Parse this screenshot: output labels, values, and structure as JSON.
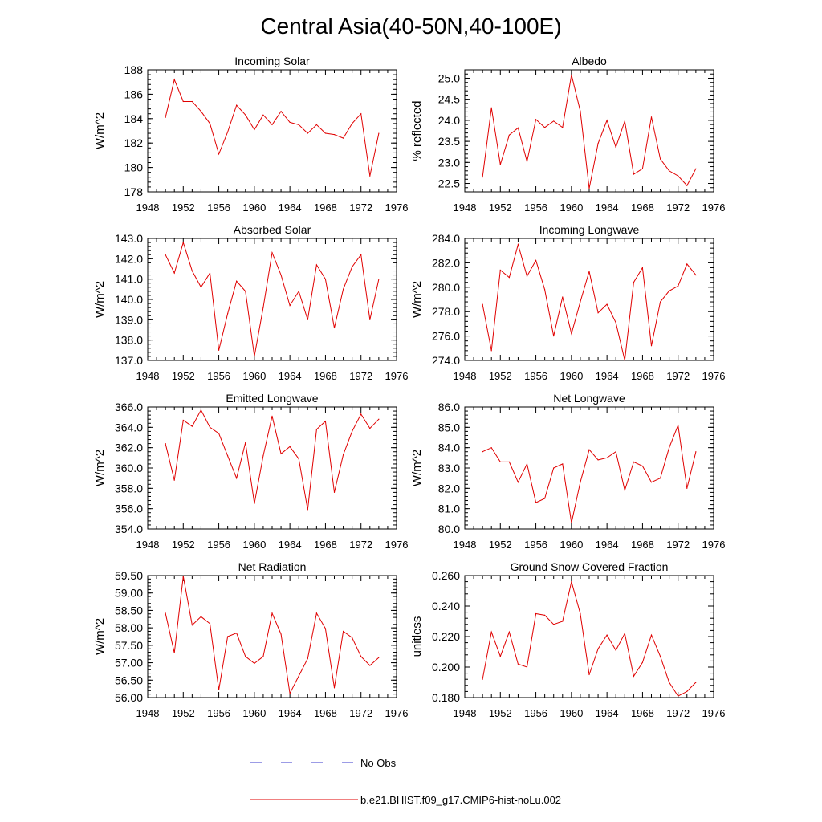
{
  "figure_title": "Central Asia(40-50N,40-100E)",
  "legend": {
    "obs_label": "No Obs",
    "model_label": "b.e21.BHIST.f09_g17.CMIP6-hist-noLu.002",
    "obs_color": "#3a3acc",
    "model_color": "#e00000"
  },
  "chart_data": [
    {
      "type": "line",
      "title": "Incoming Solar",
      "ylabel": "W/m^2",
      "xlabel": "",
      "xlim": [
        1948,
        1976
      ],
      "ylim": [
        178,
        188
      ],
      "xticks": [
        1948,
        1952,
        1956,
        1960,
        1964,
        1968,
        1972,
        1976
      ],
      "yticks": [
        "178",
        "180",
        "182",
        "184",
        "186",
        "188"
      ],
      "x": [
        1950,
        1951,
        1952,
        1953,
        1954,
        1955,
        1956,
        1957,
        1958,
        1959,
        1960,
        1961,
        1962,
        1963,
        1964,
        1965,
        1966,
        1967,
        1968,
        1969,
        1970,
        1971,
        1972,
        1973,
        1974
      ],
      "values": [
        184.1,
        187.2,
        185.4,
        185.4,
        184.6,
        183.6,
        181.1,
        182.9,
        185.1,
        184.3,
        183.1,
        184.3,
        183.5,
        184.6,
        183.7,
        183.5,
        182.8,
        183.5,
        182.8,
        182.7,
        182.4,
        183.6,
        184.4,
        179.3,
        182.8
      ]
    },
    {
      "type": "line",
      "title": "Albedo",
      "ylabel": "% reflected",
      "xlabel": "",
      "xlim": [
        1948,
        1976
      ],
      "ylim": [
        22.3,
        25.2
      ],
      "xticks": [
        1948,
        1952,
        1956,
        1960,
        1964,
        1968,
        1972,
        1976
      ],
      "yticks": [
        "22.5",
        "23.0",
        "23.5",
        "24.0",
        "24.5",
        "25.0"
      ],
      "x": [
        1950,
        1951,
        1952,
        1953,
        1954,
        1955,
        1956,
        1957,
        1958,
        1959,
        1960,
        1961,
        1962,
        1963,
        1964,
        1965,
        1966,
        1967,
        1968,
        1969,
        1970,
        1971,
        1972,
        1973,
        1974
      ],
      "values": [
        22.65,
        24.3,
        22.95,
        23.65,
        23.82,
        23.02,
        24.02,
        23.83,
        23.98,
        23.83,
        25.08,
        24.22,
        22.38,
        23.45,
        24.0,
        23.36,
        23.98,
        22.72,
        22.85,
        24.08,
        23.08,
        22.8,
        22.68,
        22.45,
        22.85
      ]
    },
    {
      "type": "line",
      "title": "Absorbed Solar",
      "ylabel": "W/m^2",
      "xlabel": "",
      "xlim": [
        1948,
        1976
      ],
      "ylim": [
        137,
        143
      ],
      "xticks": [
        1948,
        1952,
        1956,
        1960,
        1964,
        1968,
        1972,
        1976
      ],
      "yticks": [
        "137.0",
        "138.0",
        "139.0",
        "140.0",
        "141.0",
        "142.0",
        "143.0"
      ],
      "x": [
        1950,
        1951,
        1952,
        1953,
        1954,
        1955,
        1956,
        1957,
        1958,
        1959,
        1960,
        1961,
        1962,
        1963,
        1964,
        1965,
        1966,
        1967,
        1968,
        1969,
        1970,
        1971,
        1972,
        1973,
        1974
      ],
      "values": [
        142.2,
        141.3,
        142.8,
        141.4,
        140.6,
        141.3,
        137.5,
        139.3,
        140.9,
        140.4,
        137.2,
        139.6,
        142.3,
        141.2,
        139.7,
        140.4,
        139.0,
        141.7,
        141.0,
        138.6,
        140.5,
        141.6,
        142.2,
        139.0,
        141.0
      ]
    },
    {
      "type": "line",
      "title": "Incoming Longwave",
      "ylabel": "W/m^2",
      "xlabel": "",
      "xlim": [
        1948,
        1976
      ],
      "ylim": [
        274,
        284
      ],
      "xticks": [
        1948,
        1952,
        1956,
        1960,
        1964,
        1968,
        1972,
        1976
      ],
      "yticks": [
        "274.0",
        "276.0",
        "278.0",
        "280.0",
        "282.0",
        "284.0"
      ],
      "x": [
        1950,
        1951,
        1952,
        1953,
        1954,
        1955,
        1956,
        1957,
        1958,
        1959,
        1960,
        1961,
        1962,
        1963,
        1964,
        1965,
        1966,
        1967,
        1968,
        1969,
        1970,
        1971,
        1972,
        1973,
        1974
      ],
      "values": [
        278.6,
        274.8,
        281.4,
        280.8,
        283.5,
        280.9,
        282.2,
        279.8,
        276.0,
        279.2,
        276.2,
        278.8,
        281.3,
        277.9,
        278.6,
        277.1,
        274.0,
        280.4,
        281.6,
        275.2,
        278.8,
        279.7,
        280.1,
        281.9,
        281.0
      ]
    },
    {
      "type": "line",
      "title": "Emitted Longwave",
      "ylabel": "W/m^2",
      "xlabel": "",
      "xlim": [
        1948,
        1976
      ],
      "ylim": [
        354,
        366
      ],
      "xticks": [
        1948,
        1952,
        1956,
        1960,
        1964,
        1968,
        1972,
        1976
      ],
      "yticks": [
        "354.0",
        "356.0",
        "358.0",
        "360.0",
        "362.0",
        "364.0",
        "366.0"
      ],
      "x": [
        1950,
        1951,
        1952,
        1953,
        1954,
        1955,
        1956,
        1957,
        1958,
        1959,
        1960,
        1961,
        1962,
        1963,
        1964,
        1965,
        1966,
        1967,
        1968,
        1969,
        1970,
        1971,
        1972,
        1973,
        1974
      ],
      "values": [
        362.4,
        358.8,
        364.7,
        364.1,
        365.7,
        364.0,
        363.4,
        361.2,
        359.0,
        362.5,
        356.5,
        361.2,
        365.1,
        361.4,
        362.1,
        360.9,
        355.9,
        363.8,
        364.6,
        357.6,
        361.3,
        363.6,
        365.3,
        363.9,
        364.8
      ]
    },
    {
      "type": "line",
      "title": "Net Longwave",
      "ylabel": "W/m^2",
      "xlabel": "",
      "xlim": [
        1948,
        1976
      ],
      "ylim": [
        80,
        86
      ],
      "xticks": [
        1948,
        1952,
        1956,
        1960,
        1964,
        1968,
        1972,
        1976
      ],
      "yticks": [
        "80.0",
        "81.0",
        "82.0",
        "83.0",
        "84.0",
        "85.0",
        "86.0"
      ],
      "x": [
        1950,
        1951,
        1952,
        1953,
        1954,
        1955,
        1956,
        1957,
        1958,
        1959,
        1960,
        1961,
        1962,
        1963,
        1964,
        1965,
        1966,
        1967,
        1968,
        1969,
        1970,
        1971,
        1972,
        1973,
        1974
      ],
      "values": [
        83.8,
        84.0,
        83.3,
        83.3,
        82.3,
        83.2,
        81.3,
        81.5,
        83.0,
        83.2,
        80.3,
        82.3,
        83.9,
        83.4,
        83.5,
        83.8,
        81.9,
        83.3,
        83.1,
        82.3,
        82.5,
        84.0,
        85.1,
        82.0,
        83.8
      ]
    },
    {
      "type": "line",
      "title": "Net Radiation",
      "ylabel": "W/m^2",
      "xlabel": "",
      "xlim": [
        1948,
        1976
      ],
      "ylim": [
        56,
        59.5
      ],
      "xticks": [
        1948,
        1952,
        1956,
        1960,
        1964,
        1968,
        1972,
        1976
      ],
      "yticks": [
        "56.00",
        "56.50",
        "57.00",
        "57.50",
        "58.00",
        "58.50",
        "59.00",
        "59.50"
      ],
      "x": [
        1950,
        1951,
        1952,
        1953,
        1954,
        1955,
        1956,
        1957,
        1958,
        1959,
        1960,
        1961,
        1962,
        1963,
        1964,
        1965,
        1966,
        1967,
        1968,
        1969,
        1970,
        1971,
        1972,
        1973,
        1974
      ],
      "values": [
        58.42,
        57.28,
        59.48,
        58.08,
        58.32,
        58.12,
        56.22,
        57.75,
        57.85,
        57.18,
        56.98,
        57.18,
        58.42,
        57.82,
        56.12,
        56.62,
        57.12,
        58.42,
        57.98,
        56.28,
        57.9,
        57.72,
        57.18,
        56.92,
        57.15
      ]
    },
    {
      "type": "line",
      "title": "Ground Snow Covered Fraction",
      "ylabel": "unitless",
      "xlabel": "",
      "xlim": [
        1948,
        1976
      ],
      "ylim": [
        0.18,
        0.26
      ],
      "xticks": [
        1948,
        1952,
        1956,
        1960,
        1964,
        1968,
        1972,
        1976
      ],
      "yticks": [
        "0.180",
        "0.200",
        "0.220",
        "0.240",
        "0.260"
      ],
      "x": [
        1950,
        1951,
        1952,
        1953,
        1954,
        1955,
        1956,
        1957,
        1958,
        1959,
        1960,
        1961,
        1962,
        1963,
        1964,
        1965,
        1966,
        1967,
        1968,
        1969,
        1970,
        1971,
        1972,
        1973,
        1974
      ],
      "values": [
        0.192,
        0.223,
        0.207,
        0.223,
        0.202,
        0.2,
        0.235,
        0.234,
        0.228,
        0.23,
        0.256,
        0.235,
        0.195,
        0.212,
        0.221,
        0.211,
        0.222,
        0.194,
        0.203,
        0.221,
        0.207,
        0.19,
        0.181,
        0.184,
        0.19
      ]
    }
  ]
}
